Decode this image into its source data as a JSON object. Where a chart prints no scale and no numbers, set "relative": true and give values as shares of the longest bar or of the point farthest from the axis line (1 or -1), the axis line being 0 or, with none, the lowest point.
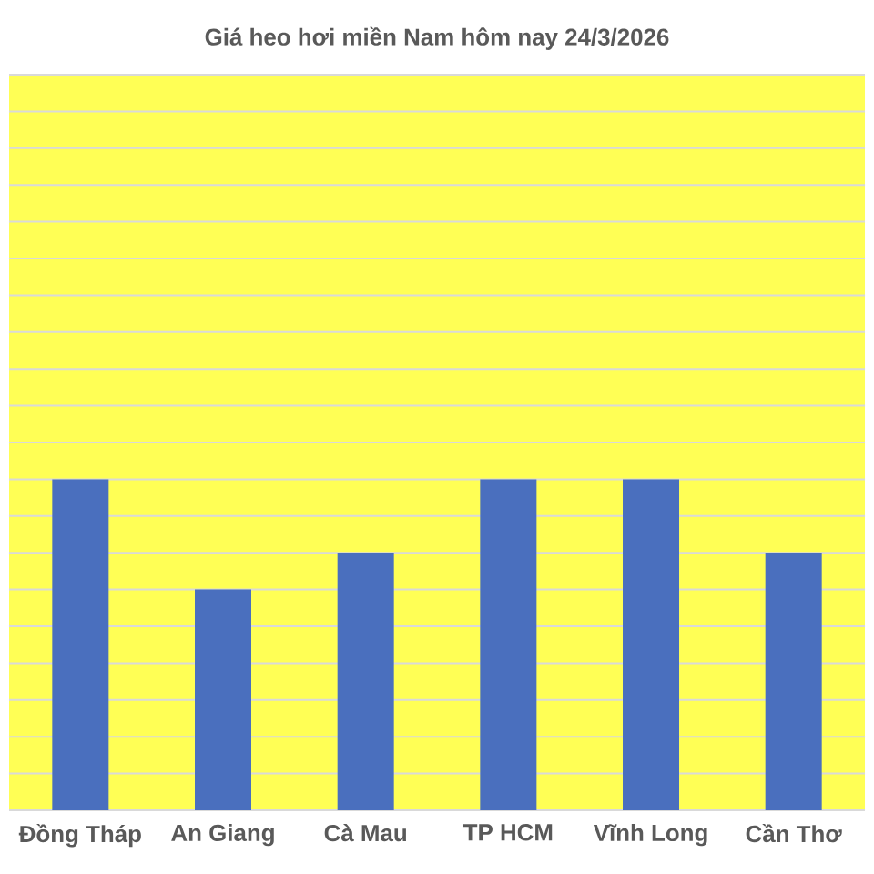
{
  "chart_data": {
    "type": "bar",
    "title": "Giá heo hơi miền Nam hôm nay 24/3/2026",
    "categories": [
      "Đồng Tháp",
      "An Giang",
      "Cà Mau",
      "TP HCM",
      "Vĩnh Long",
      "Cần Thơ"
    ],
    "values": [
      1,
      0.667,
      0.778,
      1,
      1,
      0.778
    ],
    "color": "#4a6fbe",
    "relative": true,
    "grid": "y"
  }
}
